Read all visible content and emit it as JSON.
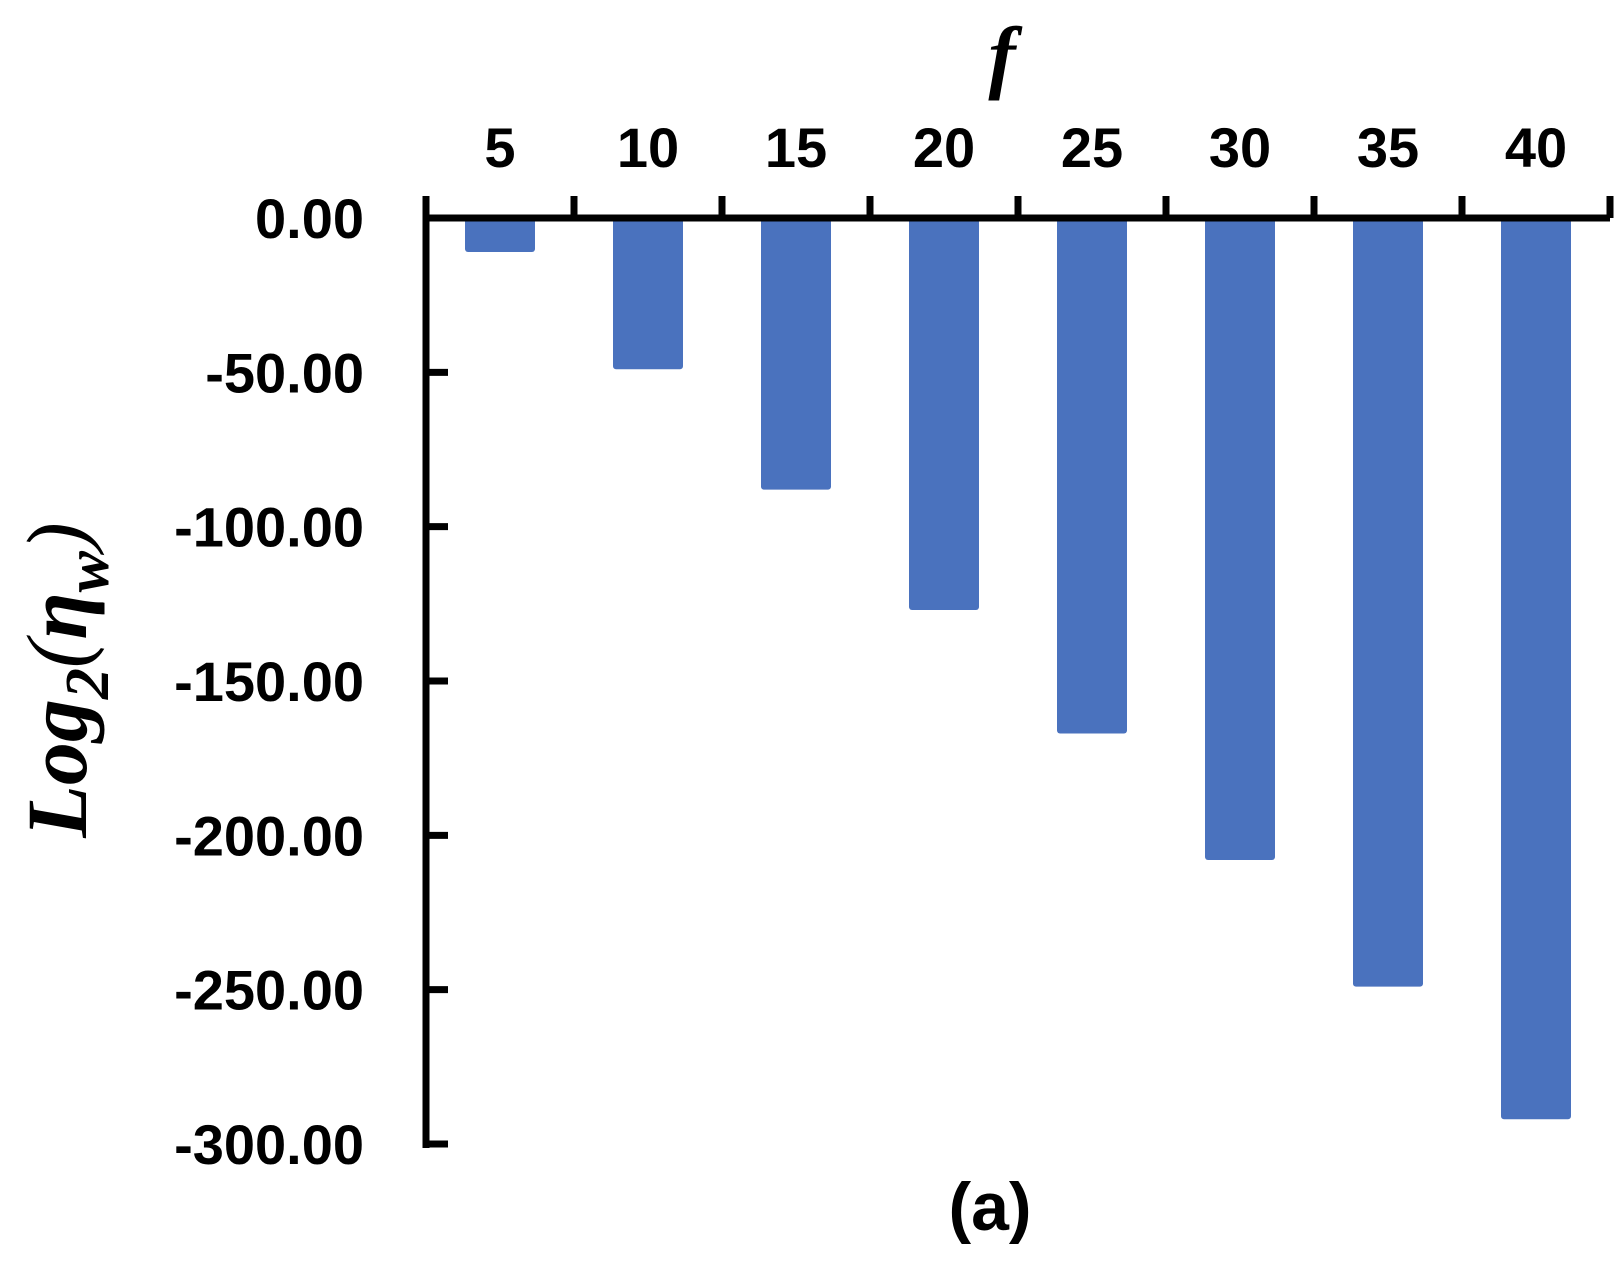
{
  "chart_data": {
    "type": "bar",
    "categories": [
      "5",
      "10",
      "15",
      "20",
      "25",
      "30",
      "35",
      "40"
    ],
    "values": [
      -11,
      -49,
      -88,
      -127,
      -167,
      -208,
      -249,
      -292
    ],
    "xlabel": "f",
    "ylabel": "Log2(ηw)",
    "ylabel_parts": {
      "base": "Log",
      "sub1": "2",
      "open": "(",
      "eta": "η",
      "sub2": "w",
      "close": ")"
    },
    "ylim": [
      -300,
      0
    ],
    "yticks": [
      0,
      -50,
      -100,
      -150,
      -200,
      -250,
      -300
    ],
    "ytick_labels": [
      "0.00",
      "-50.00",
      "-100.00",
      "-150.00",
      "-200.00",
      "-250.00",
      "-300.00"
    ],
    "x_axis_position": "top",
    "grid": false,
    "legend": "none",
    "bar_color": "#4A72BE",
    "caption": "(a)"
  }
}
